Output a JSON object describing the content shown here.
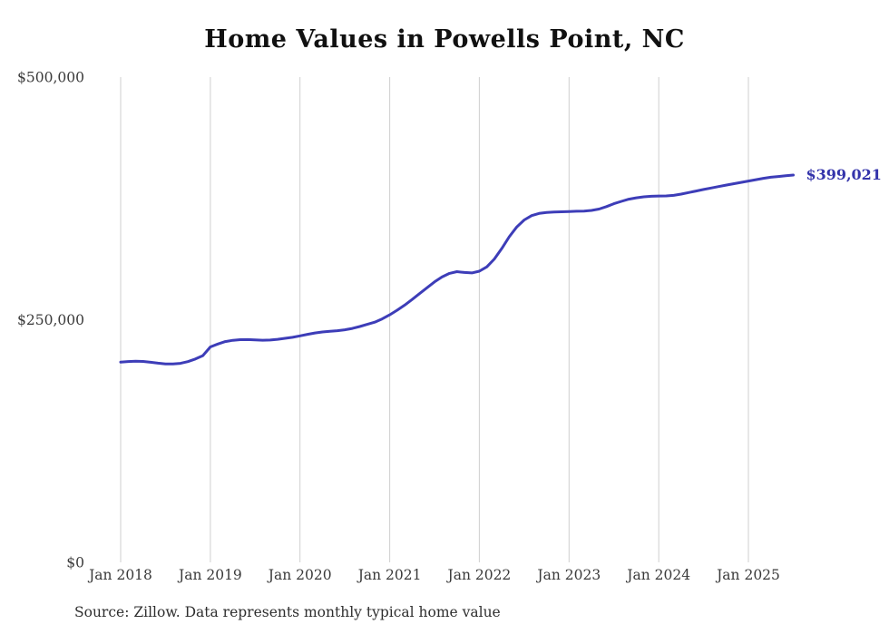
{
  "chart": {
    "title": "Home Values in Powells Point, NC",
    "end_label": "$399,021",
    "source_note": "Source: Zillow. Data represents monthly typical home value",
    "line_color": "#3d3db8",
    "end_label_color": "#3434ab",
    "grid_color": "#cfcfcf",
    "axis_text_color": "#3a3a3a"
  },
  "chart_data": {
    "type": "line",
    "title": "Home Values in Powells Point, NC",
    "xlabel": "",
    "ylabel": "",
    "ylim": [
      0,
      500000
    ],
    "grid": "vertical-only",
    "legend": "none",
    "y_tick_values": [
      0,
      250000,
      500000
    ],
    "y_tick_labels": [
      "$0",
      "$250,000",
      "$500,000"
    ],
    "x_tick_labels": [
      "Jan 2018",
      "Jan 2019",
      "Jan 2020",
      "Jan 2021",
      "Jan 2022",
      "Jan 2023",
      "Jan 2024",
      "Jan 2025"
    ],
    "annotation": "$399,021",
    "last_value": 399021,
    "series": [
      {
        "name": "Monthly typical home value",
        "x_start": "2018-01",
        "frequency": "monthly",
        "values": [
          206300,
          206900,
          207200,
          207000,
          206200,
          205200,
          204500,
          204400,
          205000,
          206800,
          209500,
          213000,
          222000,
          225000,
          227500,
          228800,
          229400,
          229500,
          229200,
          228900,
          229100,
          229800,
          230800,
          231900,
          233400,
          235000,
          236400,
          237400,
          238100,
          238700,
          239600,
          241000,
          243000,
          245200,
          247500,
          250800,
          255000,
          259800,
          265000,
          270800,
          276900,
          283000,
          289000,
          294000,
          297800,
          299500,
          298700,
          298200,
          300000,
          304500,
          312500,
          323500,
          335500,
          345500,
          352800,
          357300,
          359500,
          360500,
          361000,
          361200,
          361500,
          361800,
          362000,
          362600,
          364000,
          366500,
          369500,
          372000,
          374200,
          375600,
          376600,
          377200,
          377500,
          377600,
          378100,
          379400,
          381000,
          382600,
          384200,
          385700,
          387200,
          388700,
          390100,
          391500,
          392900,
          394300,
          395700,
          396800,
          397600,
          398300,
          399021
        ]
      }
    ]
  }
}
